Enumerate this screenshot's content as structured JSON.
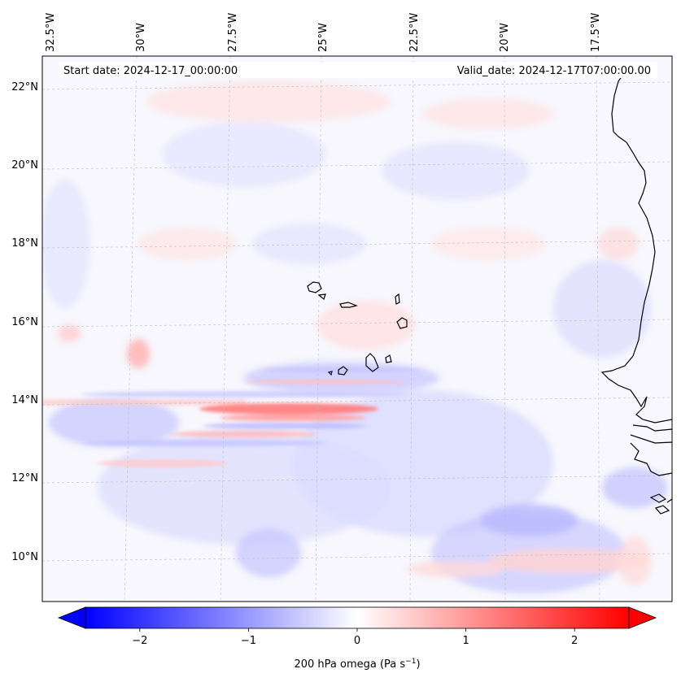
{
  "figure": {
    "start_date_text": "Start date: 2024-12-17_00:00:00",
    "valid_date_text": "Valid_date: 2024-12-17T07:00:00.00"
  },
  "map": {
    "lon_ticks": [
      "32.5°W",
      "30°W",
      "27.5°W",
      "25°W",
      "22.5°W",
      "20°W",
      "17.5°W"
    ],
    "lat_ticks": [
      "22°N",
      "20°N",
      "18°N",
      "16°N",
      "14°N",
      "12°N",
      "10°N"
    ],
    "coastline_color": "#000000",
    "gridline_color": "#bbbbbb"
  },
  "colorbar": {
    "label": "200 hPa omega (Pa s",
    "label_exponent": "−1",
    "label_close": ")",
    "tick_labels": [
      "−2",
      "−1",
      "0",
      "1",
      "2"
    ],
    "tick_values": [
      -2,
      -1,
      0,
      1,
      2
    ],
    "range": [
      -2.5,
      2.5
    ],
    "cmap_low": "#0000ff",
    "cmap_mid": "#ffffff",
    "cmap_high": "#ff0000"
  }
}
